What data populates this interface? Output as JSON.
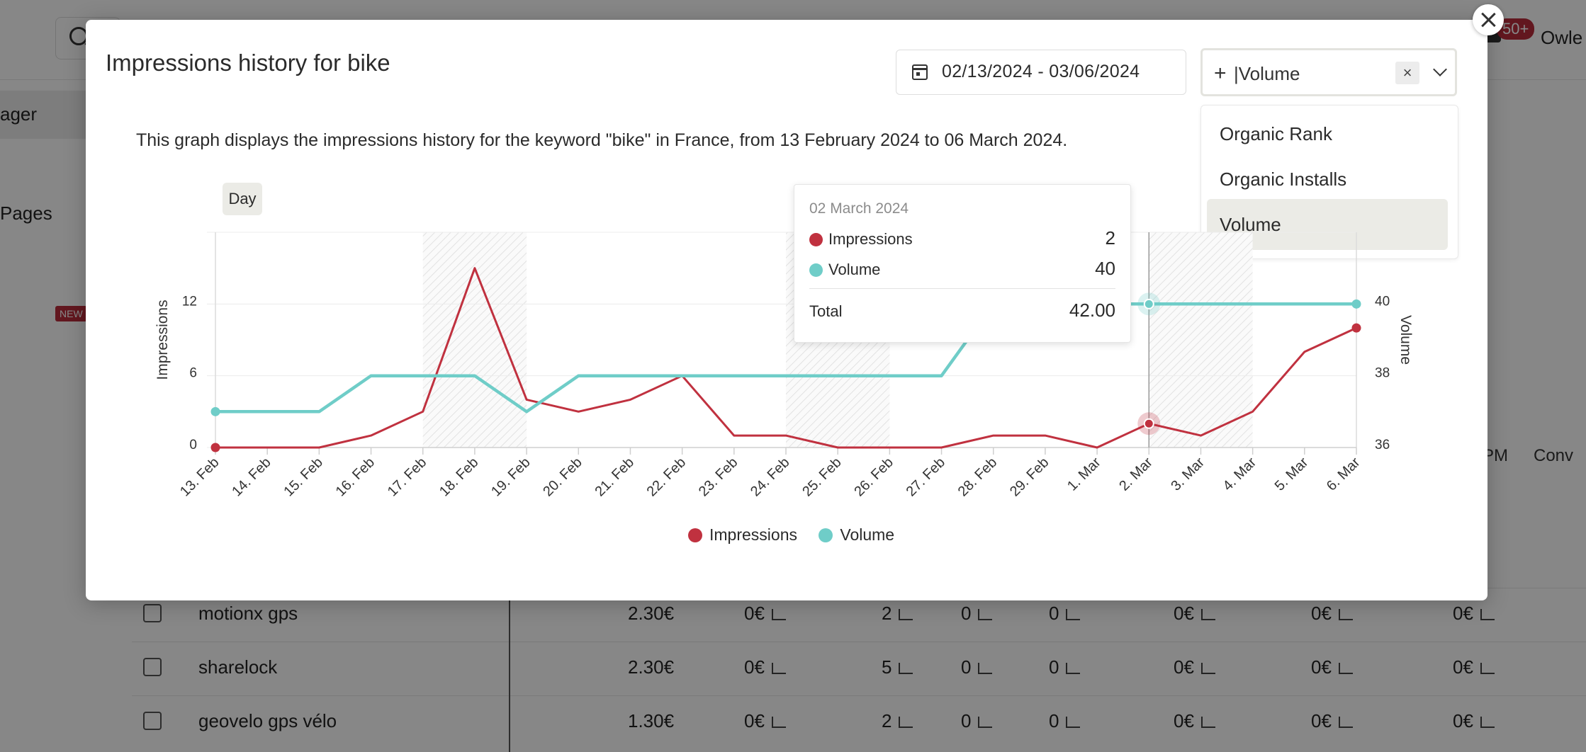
{
  "background": {
    "user_name": "Owle",
    "notification_badge": "50+",
    "sidebar": [
      "ager",
      "Pages"
    ],
    "new_badge": "NEW",
    "table_headers": [
      "PM",
      "Conv"
    ],
    "rows": [
      {
        "keyword": "motionx gps",
        "cells": [
          "2.30€",
          "0€",
          "2",
          "0",
          "0",
          "0€",
          "0€",
          "0€"
        ]
      },
      {
        "keyword": "sharelock",
        "cells": [
          "2.30€",
          "0€",
          "5",
          "0",
          "0",
          "0€",
          "0€",
          "0€"
        ]
      },
      {
        "keyword": "geovelo gps vélo",
        "cells": [
          "1.30€",
          "0€",
          "2",
          "0",
          "0",
          "0€",
          "0€",
          "0€"
        ]
      }
    ]
  },
  "modal": {
    "title": "Impressions history for bike",
    "date_range": "02/13/2024 - 03/06/2024",
    "metric_input": "|Volume",
    "metric_options": [
      "Organic Rank",
      "Organic Installs",
      "Volume"
    ],
    "selected_option": "Volume",
    "description": "This graph displays the impressions history for the keyword \"bike\" in France, from 13 February 2024 to 06 March 2024.",
    "granularity": "Day"
  },
  "tooltip": {
    "date": "02 March 2024",
    "rows": [
      {
        "label": "Impressions",
        "value": "2"
      },
      {
        "label": "Volume",
        "value": "40"
      }
    ],
    "total_label": "Total",
    "total_value": "42.00"
  },
  "legend": [
    "Impressions",
    "Volume"
  ],
  "colors": {
    "impressions": "#c0313f",
    "volume": "#6fcdc8"
  },
  "chart_data": {
    "type": "line",
    "categories": [
      "13. Feb",
      "14. Feb",
      "15. Feb",
      "16. Feb",
      "17. Feb",
      "18. Feb",
      "19. Feb",
      "20. Feb",
      "21. Feb",
      "22. Feb",
      "23. Feb",
      "24. Feb",
      "25. Feb",
      "26. Feb",
      "27. Feb",
      "28. Feb",
      "29. Feb",
      "1. Mar",
      "2. Mar",
      "3. Mar",
      "4. Mar",
      "5. Mar",
      "6. Mar"
    ],
    "y_left": {
      "label": "Impressions",
      "ticks": [
        0,
        6,
        12
      ],
      "range": [
        0,
        18
      ]
    },
    "y_right": {
      "label": "Volume",
      "ticks": [
        36,
        38,
        40
      ],
      "range": [
        36,
        42
      ]
    },
    "weekend_bands": [
      [
        "17. Feb",
        "18. Feb"
      ],
      [
        "24. Feb",
        "25. Feb"
      ],
      [
        "2. Mar",
        "3. Mar"
      ]
    ],
    "highlighted_category": "2. Mar",
    "series": [
      {
        "name": "Impressions",
        "axis": "left",
        "values": [
          0,
          0,
          0,
          1,
          3,
          15,
          4,
          3,
          4,
          6,
          1,
          1,
          0,
          0,
          0,
          1,
          1,
          0,
          2,
          1,
          3,
          8,
          10
        ]
      },
      {
        "name": "Volume",
        "axis": "right",
        "values": [
          37,
          37,
          37,
          38,
          38,
          38,
          37,
          38,
          38,
          38,
          38,
          38,
          38,
          38,
          38,
          40,
          40,
          40,
          40,
          40,
          40,
          40,
          40
        ]
      }
    ]
  }
}
